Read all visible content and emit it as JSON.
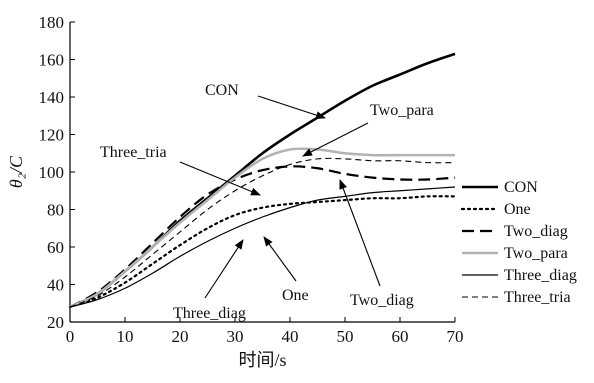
{
  "chart_data": {
    "type": "line",
    "title": "",
    "xlabel": "时间/s",
    "ylabel": "θ₂/C",
    "xlim": [
      0,
      70
    ],
    "ylim": [
      20,
      180
    ],
    "xticks": [
      0,
      10,
      20,
      30,
      40,
      50,
      60,
      70
    ],
    "yticks": [
      20,
      40,
      60,
      80,
      100,
      120,
      140,
      160,
      180
    ],
    "grid": false,
    "legend_position": "right",
    "series": [
      {
        "name": "CON",
        "color": "#000000",
        "dash": "solid",
        "x": [
          0,
          5,
          10,
          15,
          20,
          25,
          30,
          35,
          40,
          45,
          50,
          55,
          60,
          65,
          70
        ],
        "y": [
          28,
          35,
          47,
          60,
          74,
          86,
          98,
          110,
          120,
          129,
          138,
          146,
          152,
          158,
          163
        ]
      },
      {
        "name": "One",
        "color": "#000000",
        "dash": "dotted",
        "x": [
          0,
          5,
          10,
          15,
          20,
          25,
          30,
          35,
          40,
          45,
          50,
          55,
          60,
          65,
          70
        ],
        "y": [
          28,
          33,
          41,
          51,
          61,
          70,
          77,
          81,
          83,
          84,
          85,
          86,
          86,
          87,
          87
        ]
      },
      {
        "name": "Two_diag",
        "color": "#000000",
        "dash": "longdash",
        "x": [
          0,
          5,
          10,
          15,
          20,
          25,
          30,
          35,
          40,
          45,
          50,
          55,
          60,
          65,
          70
        ],
        "y": [
          28,
          36,
          48,
          62,
          76,
          88,
          96,
          101,
          103,
          102,
          99,
          97,
          96,
          96,
          97
        ]
      },
      {
        "name": "Two_para",
        "color": "#b3b3b3",
        "dash": "solid",
        "x": [
          0,
          5,
          10,
          15,
          20,
          25,
          30,
          35,
          40,
          45,
          50,
          55,
          60,
          65,
          70
        ],
        "y": [
          28,
          35,
          47,
          60,
          73,
          85,
          97,
          107,
          112,
          112,
          110,
          109,
          109,
          109,
          109
        ]
      },
      {
        "name": "Three_diag",
        "color": "#000000",
        "dash": "solid",
        "x": [
          0,
          5,
          10,
          15,
          20,
          25,
          30,
          35,
          40,
          45,
          50,
          55,
          60,
          65,
          70
        ],
        "y": [
          28,
          32,
          38,
          46,
          55,
          63,
          70,
          76,
          81,
          85,
          87,
          89,
          90,
          91,
          92
        ]
      },
      {
        "name": "Three_tria",
        "color": "#000000",
        "dash": "shortdash",
        "x": [
          0,
          5,
          10,
          15,
          20,
          25,
          30,
          35,
          40,
          45,
          50,
          55,
          60,
          65,
          70
        ],
        "y": [
          28,
          34,
          44,
          56,
          68,
          80,
          90,
          98,
          104,
          107,
          107,
          106,
          106,
          105,
          105
        ]
      }
    ],
    "annotations": [
      {
        "text": "CON",
        "target": "CON"
      },
      {
        "text": "Two_para",
        "target": "Two_para"
      },
      {
        "text": "Three_tria",
        "target": "Three_tria"
      },
      {
        "text": "Three_diag",
        "target": "Three_diag"
      },
      {
        "text": "One",
        "target": "One"
      },
      {
        "text": "Two_diag",
        "target": "Two_diag"
      }
    ]
  }
}
